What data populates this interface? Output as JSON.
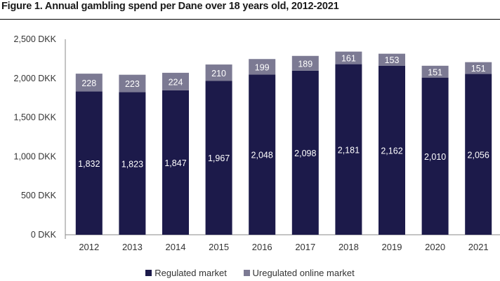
{
  "figure_title": "Figure 1. Annual gambling spend per Dane over 18 years old, 2012-2021",
  "chart_data": {
    "type": "bar",
    "stacked": true,
    "categories": [
      "2012",
      "2013",
      "2014",
      "2015",
      "2016",
      "2017",
      "2018",
      "2019",
      "2020",
      "2021"
    ],
    "series": [
      {
        "name": "Regulated market",
        "color": "#1c1a4a",
        "values": [
          1832,
          1823,
          1847,
          1967,
          2048,
          2098,
          2181,
          2162,
          2010,
          2056
        ],
        "labels": [
          "1,832",
          "1,823",
          "1,847",
          "1,967",
          "2,048",
          "2,098",
          "2,181",
          "2,162",
          "2,010",
          "2,056"
        ]
      },
      {
        "name": "Uregulated online market",
        "color": "#7c7a93",
        "values": [
          228,
          223,
          224,
          210,
          199,
          189,
          161,
          153,
          151,
          151
        ],
        "labels": [
          "228",
          "223",
          "224",
          "210",
          "199",
          "189",
          "161",
          "153",
          "151",
          "151"
        ]
      }
    ],
    "yticks": [
      0,
      500,
      1000,
      1500,
      2000,
      2500
    ],
    "ytick_labels": [
      "0 DKK",
      "500 DKK",
      "1,000 DKK",
      "1,500 DKK",
      "2,000 DKK",
      "2,500 DKK"
    ],
    "ylim": [
      0,
      2500
    ],
    "grid": false,
    "legend_position": "bottom"
  },
  "legend": {
    "items": [
      {
        "label": "Regulated market",
        "color": "#1c1a4a"
      },
      {
        "label": "Uregulated online market",
        "color": "#7c7a93"
      }
    ]
  }
}
